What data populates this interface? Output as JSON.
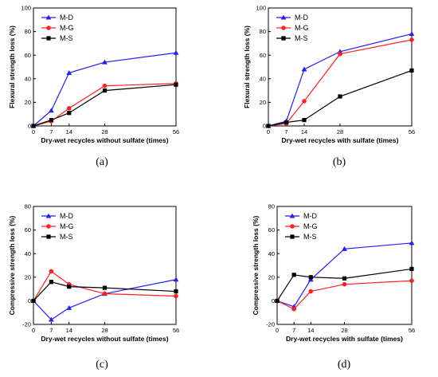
{
  "chart_data": [
    {
      "type": "line",
      "panel_label": "(a)",
      "xlabel": "Dry-wet recycles without sulfate (times)",
      "ylabel": "Flexural strength loss (%)",
      "xlim": [
        0,
        56
      ],
      "ylim": [
        0,
        100
      ],
      "x_ticks": [
        0,
        7,
        14,
        28,
        56
      ],
      "y_ticks": [
        0,
        20,
        40,
        60,
        80,
        100
      ],
      "x": [
        0,
        7,
        14,
        28,
        56
      ],
      "legend_position": "top-left",
      "series": [
        {
          "name": "M-D",
          "color": "#1f1fff",
          "marker": "triangle",
          "values": [
            0,
            13,
            45,
            54,
            62
          ]
        },
        {
          "name": "M-G",
          "color": "#ff2020",
          "marker": "circle",
          "values": [
            0,
            4,
            15,
            34,
            36
          ]
        },
        {
          "name": "M-S",
          "color": "#000000",
          "marker": "square",
          "values": [
            0,
            5,
            11,
            30,
            35
          ]
        }
      ]
    },
    {
      "type": "line",
      "panel_label": "(b)",
      "xlabel": "Dry-wet recycles with sulfate (times)",
      "ylabel": "Flexural strength loss (%)",
      "xlim": [
        0,
        56
      ],
      "ylim": [
        0,
        100
      ],
      "x_ticks": [
        0,
        7,
        14,
        28,
        56
      ],
      "y_ticks": [
        0,
        20,
        40,
        60,
        80,
        100
      ],
      "x": [
        0,
        7,
        14,
        28,
        56
      ],
      "legend_position": "top-left",
      "series": [
        {
          "name": "M-D",
          "color": "#1f1fff",
          "marker": "triangle",
          "values": [
            0,
            4,
            48,
            63,
            78
          ]
        },
        {
          "name": "M-G",
          "color": "#ff2020",
          "marker": "circle",
          "values": [
            0,
            2,
            21,
            61,
            73
          ]
        },
        {
          "name": "M-S",
          "color": "#000000",
          "marker": "square",
          "values": [
            0,
            3,
            5,
            25,
            47
          ]
        }
      ]
    },
    {
      "type": "line",
      "panel_label": "(c)",
      "xlabel": "Dry-wet recycles without sulfate (times)",
      "ylabel": "Compressive strength loss (%)",
      "xlim": [
        0,
        56
      ],
      "ylim": [
        -20,
        80
      ],
      "x_ticks": [
        0,
        7,
        14,
        28,
        56
      ],
      "y_ticks": [
        -20,
        0,
        20,
        40,
        60,
        80
      ],
      "x": [
        0,
        7,
        14,
        28,
        56
      ],
      "legend_position": "top-left",
      "series": [
        {
          "name": "M-D",
          "color": "#1f1fff",
          "marker": "triangle",
          "values": [
            0,
            -16,
            -6,
            6,
            18
          ]
        },
        {
          "name": "M-G",
          "color": "#ff2020",
          "marker": "circle",
          "values": [
            0,
            25,
            14,
            6,
            4
          ]
        },
        {
          "name": "M-S",
          "color": "#000000",
          "marker": "square",
          "values": [
            0,
            16,
            12,
            11,
            8
          ]
        }
      ]
    },
    {
      "type": "line",
      "panel_label": "(d)",
      "xlabel": "Dry-wet recycles with sulfate (times)",
      "ylabel": "Compressive strength loss (%)",
      "xlim": [
        0,
        56
      ],
      "ylim": [
        -20,
        80
      ],
      "x_ticks": [
        0,
        7,
        14,
        28,
        56
      ],
      "y_ticks": [
        -20,
        0,
        20,
        40,
        60,
        80
      ],
      "x": [
        0,
        7,
        14,
        28,
        56
      ],
      "legend_position": "top-left",
      "series": [
        {
          "name": "M-D",
          "color": "#1f1fff",
          "marker": "triangle",
          "values": [
            0,
            -5,
            18,
            44,
            49
          ]
        },
        {
          "name": "M-G",
          "color": "#ff2020",
          "marker": "circle",
          "values": [
            0,
            -7,
            8,
            14,
            17
          ]
        },
        {
          "name": "M-S",
          "color": "#000000",
          "marker": "square",
          "values": [
            0,
            22,
            20,
            19,
            27
          ]
        }
      ]
    }
  ]
}
